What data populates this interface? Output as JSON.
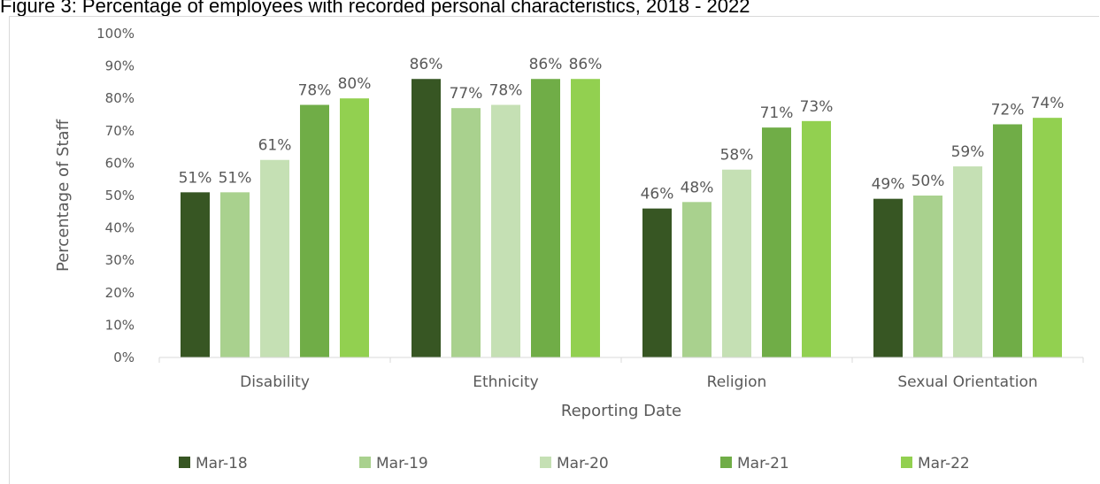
{
  "figure": {
    "title": "Figure 3: Percentage of employees with recorded personal characteristics, 2018 - 2022"
  },
  "chart_data": {
    "type": "bar",
    "categories": [
      "Disability",
      "Ethnicity",
      "Religion",
      "Sexual Orientation"
    ],
    "series": [
      {
        "name": "Mar-18",
        "color": "#375623",
        "values": [
          51,
          86,
          46,
          49
        ],
        "labels": [
          "51%",
          "86%",
          "46%",
          "49%"
        ]
      },
      {
        "name": "Mar-19",
        "color": "#a9d18e",
        "values": [
          51,
          77,
          48,
          50
        ],
        "labels": [
          "51%",
          "77%",
          "48%",
          "50%"
        ]
      },
      {
        "name": "Mar-20",
        "color": "#c5e0b4",
        "values": [
          61,
          78,
          58,
          59
        ],
        "labels": [
          "61%",
          "78%",
          "58%",
          "59%"
        ]
      },
      {
        "name": "Mar-21",
        "color": "#70ad47",
        "values": [
          78,
          86,
          71,
          72
        ],
        "labels": [
          "78%",
          "86%",
          "71%",
          "72%"
        ]
      },
      {
        "name": "Mar-22",
        "color": "#92d050",
        "values": [
          80,
          86,
          73,
          74
        ],
        "labels": [
          "80%",
          "86%",
          "73%",
          "74%"
        ]
      }
    ],
    "xlabel": "Reporting Date",
    "ylabel": "Percentage of Staff",
    "ylim": [
      0,
      100
    ],
    "yticks": [
      "0%",
      "10%",
      "20%",
      "30%",
      "40%",
      "50%",
      "60%",
      "70%",
      "80%",
      "90%",
      "100%"
    ],
    "grid": false,
    "legend_position": "bottom"
  }
}
